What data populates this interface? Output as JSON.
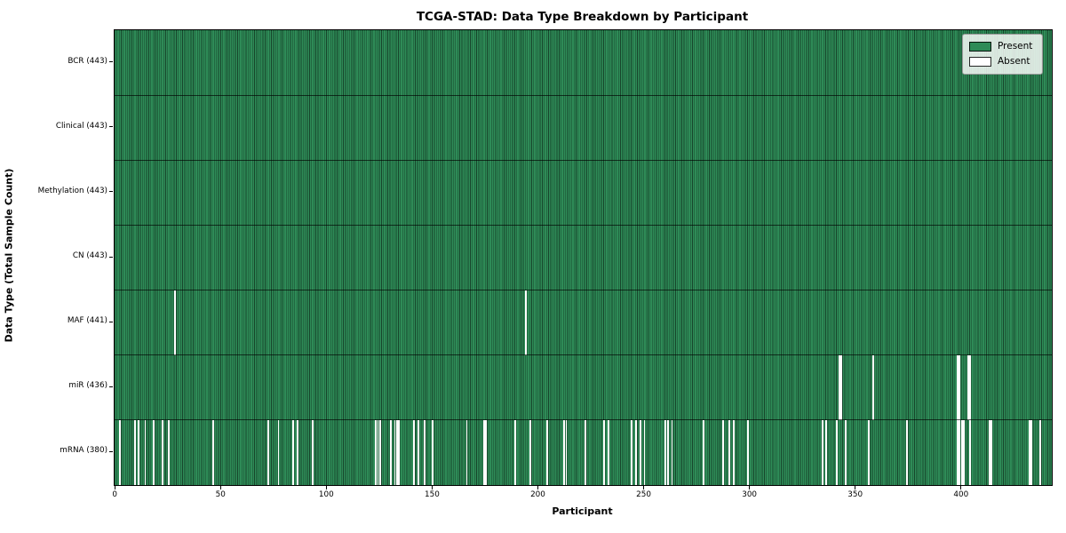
{
  "colors": {
    "present": "#2e8b57",
    "absent": "#ffffff",
    "bar_edge": "rgba(0,0,0,0.5)",
    "row_divider": "rgba(0,0,0,0.65)",
    "spine": "#000000",
    "legend_border": "#9a9a9a"
  },
  "legend": {
    "present_label": "Present",
    "absent_label": "Absent"
  },
  "chart_data": {
    "type": "heatmap",
    "title": "TCGA-STAD: Data Type Breakdown by Participant",
    "xlabel": "Participant",
    "ylabel": "Data Type (Total Sample Count)",
    "legend_entries": [
      "Present",
      "Absent"
    ],
    "legend_position": "upper right",
    "grid": false,
    "n_participants": 443,
    "x_axis": {
      "min": -0.5,
      "max": 442.5,
      "ticks": [
        0,
        50,
        100,
        150,
        200,
        250,
        300,
        350,
        400
      ]
    },
    "rows": [
      {
        "name": "BCR",
        "label": "BCR (443)",
        "total": 443,
        "absent": []
      },
      {
        "name": "Clinical",
        "label": "Clinical (443)",
        "total": 443,
        "absent": []
      },
      {
        "name": "Methylation",
        "label": "Methylation (443)",
        "total": 443,
        "absent": []
      },
      {
        "name": "CN",
        "label": "CN (443)",
        "total": 443,
        "absent": []
      },
      {
        "name": "MAF",
        "label": "MAF (441)",
        "total": 441,
        "absent": [
          28,
          194
        ]
      },
      {
        "name": "miR",
        "label": "miR (436)",
        "total": 436,
        "absent": [
          342,
          343,
          358,
          398,
          399,
          403,
          404
        ]
      },
      {
        "name": "mRNA",
        "label": "mRNA (380)",
        "total": 380,
        "absent": [
          2,
          9,
          11,
          14,
          18,
          22,
          25,
          46,
          72,
          77,
          84,
          86,
          93,
          123,
          124,
          125,
          130,
          132,
          133,
          134,
          141,
          143,
          146,
          150,
          166,
          174,
          175,
          189,
          196,
          204,
          212,
          213,
          222,
          231,
          233,
          244,
          246,
          248,
          250,
          260,
          261,
          263,
          278,
          287,
          290,
          292,
          299,
          334,
          336,
          341,
          345,
          356,
          374,
          398,
          399,
          400,
          401,
          404,
          413,
          414,
          432,
          433,
          437
        ]
      }
    ]
  }
}
